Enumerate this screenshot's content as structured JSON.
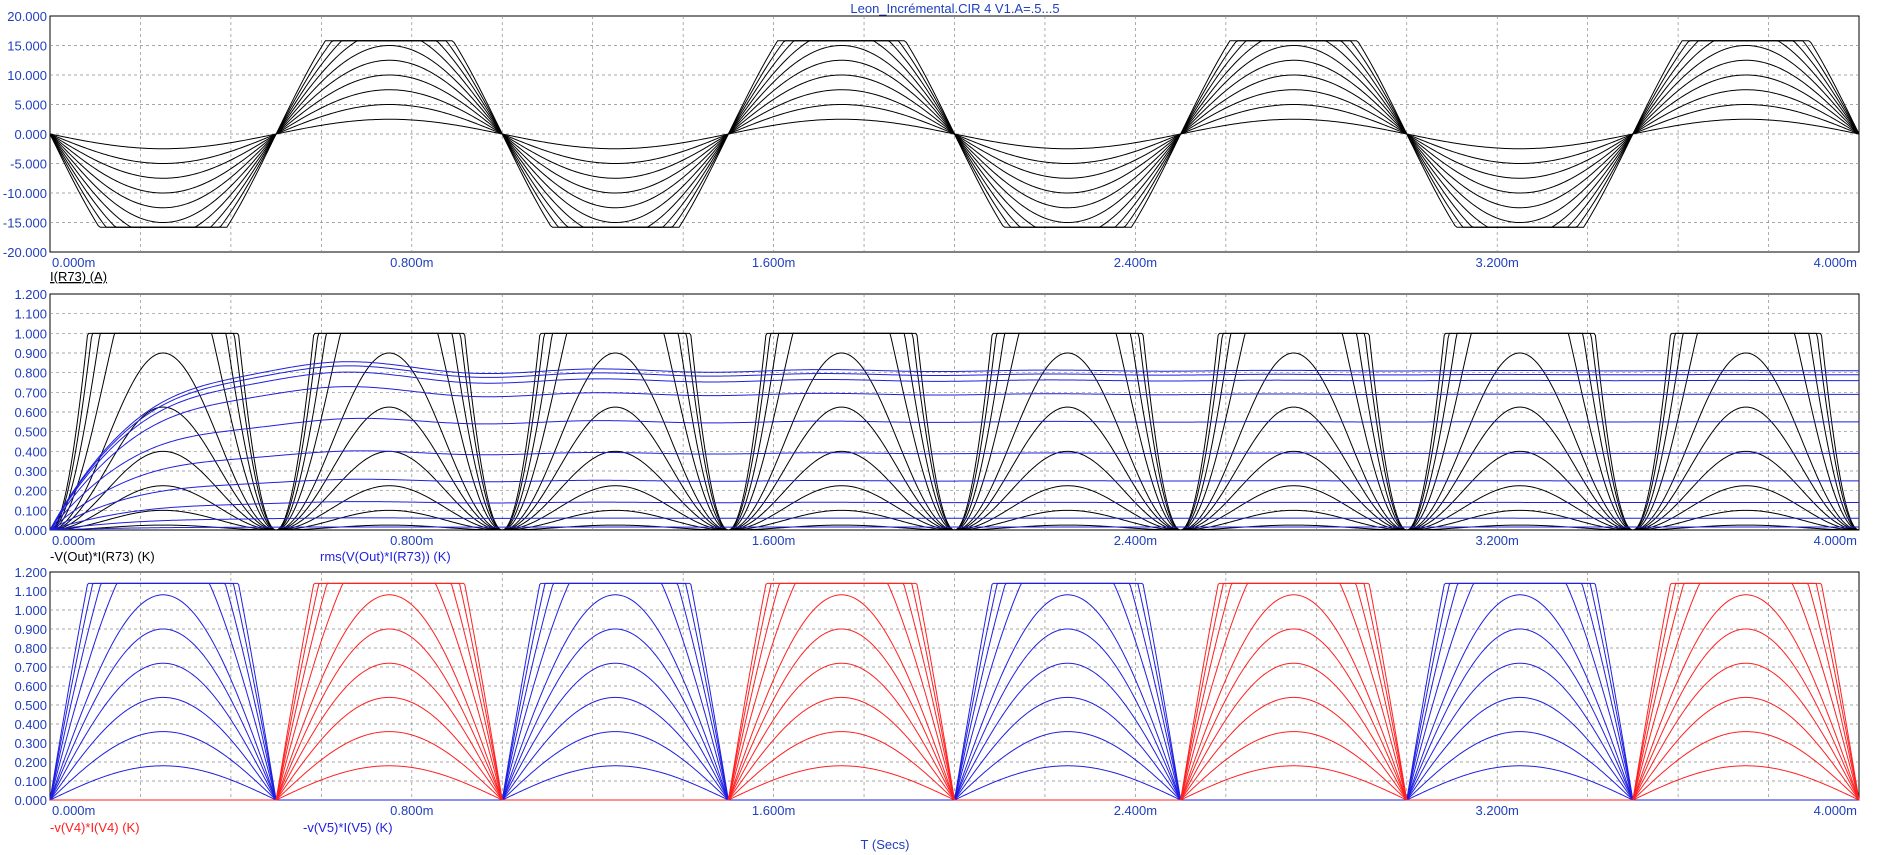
{
  "title": "Leon_Incrémental.CIR 4 V1.A=.5...5",
  "xaxis_label": "T (Secs)",
  "colors": {
    "black": "#000000",
    "blue": "#1f1fe0",
    "red": "#ff2020",
    "tick": "#1f3fbf",
    "grid": "#8a8a8a"
  },
  "chart_data": [
    {
      "type": "line",
      "title": "",
      "xlim": [
        0,
        0.004
      ],
      "ylim": [
        -20,
        20
      ],
      "x_ticks": [
        "0.000m",
        "0.800m",
        "1.600m",
        "2.400m",
        "3.200m",
        "4.000m"
      ],
      "y_ticks": [
        "20.000",
        "15.000",
        "10.000",
        "5.000",
        "0.000",
        "-5.000",
        "-10.000",
        "-15.000",
        "-20.000"
      ],
      "grid": true,
      "legend": [
        {
          "text": "I(R73) (A)",
          "color": "#000000"
        }
      ],
      "series_family": {
        "expression": "I(R73) (A)",
        "parameter": "V1.A",
        "steps": [
          0.5,
          1,
          1.5,
          2,
          2.5,
          3,
          3.5,
          4,
          4.5,
          5
        ],
        "waveform": "-A*5*sin(2*pi*1000*t), clipped at +/-15.8",
        "period": 0.001,
        "peak_unclipped": [
          2.5,
          5,
          7.5,
          10,
          12.5,
          15,
          17.5,
          20,
          22.5,
          25
        ],
        "clip": 15.8
      }
    },
    {
      "type": "line",
      "title": "",
      "xlim": [
        0,
        0.004
      ],
      "ylim": [
        0,
        1.2
      ],
      "x_ticks": [
        "0.000m",
        "0.800m",
        "1.600m",
        "2.400m",
        "3.200m",
        "4.000m"
      ],
      "y_ticks": [
        "1.200",
        "1.100",
        "1.000",
        "0.900",
        "0.800",
        "0.700",
        "0.600",
        "0.500",
        "0.400",
        "0.300",
        "0.200",
        "0.100",
        "0.000"
      ],
      "grid": true,
      "legend": [
        {
          "text": "-V(Out)*I(R73) (K)",
          "color": "#000000"
        },
        {
          "text": "rms(V(Out)*I(R73)) (K)",
          "color": "#1f1fe0"
        }
      ],
      "series_family": [
        {
          "name": "-V(Out)*I(R73) (K)",
          "peaks": [
            0.025,
            0.1,
            0.225,
            0.4,
            0.625,
            0.9,
            1.0,
            1.0,
            1.0,
            1.0
          ],
          "period": 0.0005
        },
        {
          "name": "rms(V(Out)*I(R73)) (K)",
          "settled": [
            0.015,
            0.06,
            0.14,
            0.25,
            0.39,
            0.55,
            0.69,
            0.76,
            0.79,
            0.81
          ],
          "period": 0.0005
        }
      ]
    },
    {
      "type": "line",
      "title": "",
      "xlim": [
        0,
        0.004
      ],
      "ylim": [
        0,
        1.2
      ],
      "x_ticks": [
        "0.000m",
        "0.800m",
        "1.600m",
        "2.400m",
        "3.200m",
        "4.000m"
      ],
      "y_ticks": [
        "1.200",
        "1.100",
        "1.000",
        "0.900",
        "0.800",
        "0.700",
        "0.600",
        "0.500",
        "0.400",
        "0.300",
        "0.200",
        "0.100",
        "0.000"
      ],
      "grid": true,
      "legend": [
        {
          "text": "-v(V4)*I(V4) (K)",
          "color": "#ff2020"
        },
        {
          "text": "-v(V5)*I(V5) (K)",
          "color": "#1f1fe0"
        }
      ],
      "series_family": [
        {
          "name": "-v(V5)*I(V5) (K)",
          "peaks": [
            0.18,
            0.36,
            0.54,
            0.72,
            0.9,
            1.08,
            1.14,
            1.14,
            1.14,
            1.14
          ],
          "active_half": "negative"
        },
        {
          "name": "-v(V4)*I(V4) (K)",
          "peaks": [
            0.18,
            0.36,
            0.54,
            0.72,
            0.9,
            1.08,
            1.14,
            1.14,
            1.14,
            1.14
          ],
          "active_half": "positive"
        }
      ]
    }
  ]
}
